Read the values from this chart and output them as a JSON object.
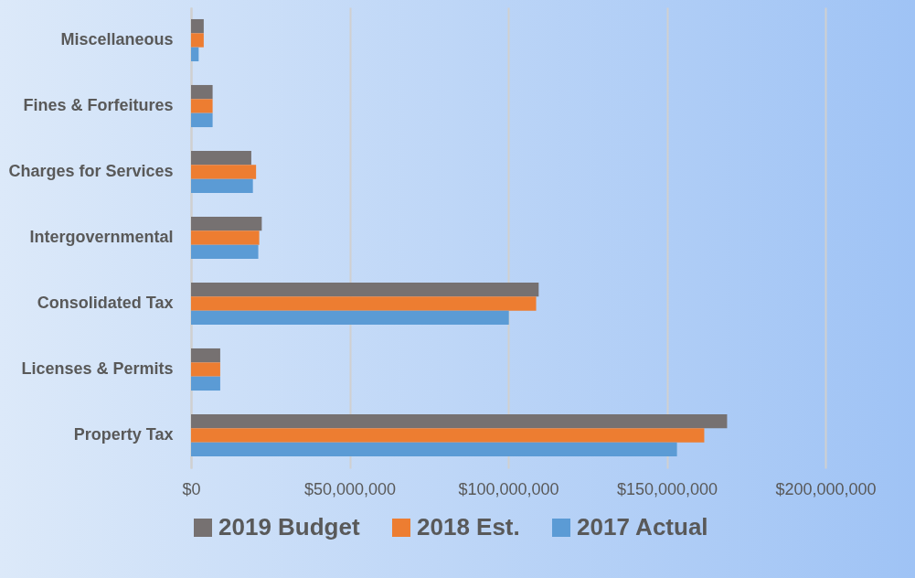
{
  "chart_data": {
    "type": "bar",
    "orientation": "horizontal",
    "categories": [
      "Miscellaneous",
      "Fines & Forfeitures",
      "Charges for Services",
      "Intergovernmental",
      "Consolidated Tax",
      "Licenses & Permits",
      "Property Tax"
    ],
    "series": [
      {
        "name": "2019 Budget",
        "color": "#767171",
        "values": [
          4000000,
          6800000,
          19000000,
          22300000,
          109600000,
          9200000,
          169000000
        ]
      },
      {
        "name": "2018 Est.",
        "color": "#ed7d31",
        "values": [
          4000000,
          6800000,
          20500000,
          21500000,
          108800000,
          9200000,
          161800000
        ]
      },
      {
        "name": "2017 Actual",
        "color": "#5b9bd5",
        "values": [
          2400000,
          6800000,
          19500000,
          21200000,
          100200000,
          9200000,
          153200000
        ]
      }
    ],
    "xlim": [
      0,
      200000000
    ],
    "xticks": [
      {
        "value": 0,
        "label": "$0"
      },
      {
        "value": 50000000,
        "label": "$50,000,000"
      },
      {
        "value": 100000000,
        "label": "$100,000,000"
      },
      {
        "value": 150000000,
        "label": "$150,000,000"
      },
      {
        "value": 200000000,
        "label": "$200,000,000"
      }
    ],
    "grid": "x",
    "legend": "bottom"
  }
}
